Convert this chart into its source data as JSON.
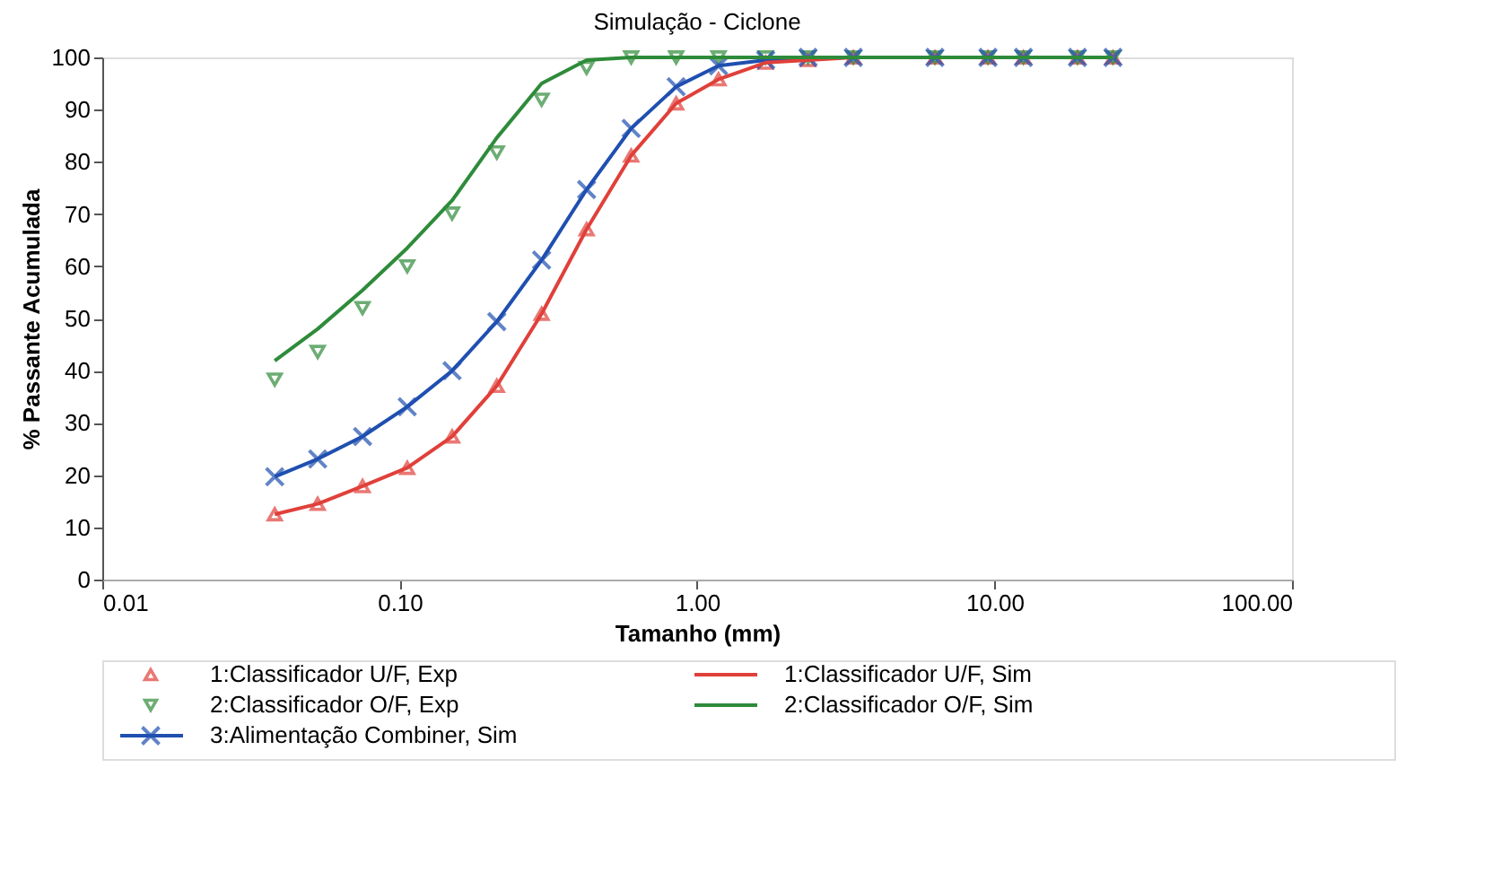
{
  "chart_data": {
    "type": "line",
    "title": "Simulação - Ciclone",
    "xlabel": "Tamanho (mm)",
    "ylabel": "% Passante Acumulada",
    "log": "x",
    "grid": false,
    "legend": "bottom",
    "xlim": [
      0.01,
      100
    ],
    "ylim": [
      0,
      100
    ],
    "xticks": [
      0.01,
      {
        "value": 0.1,
        "label": "0.10"
      },
      {
        "value": 1,
        "label": "1.00"
      },
      {
        "value": 10,
        "label": "10.00"
      },
      {
        "value": 100,
        "label": "100.00"
      }
    ],
    "yticks": [
      0,
      10,
      20,
      30,
      40,
      50,
      60,
      70,
      80,
      90,
      100
    ],
    "x": [
      0.038,
      0.053,
      0.075,
      0.106,
      0.15,
      0.212,
      0.3,
      0.425,
      0.6,
      0.85,
      1.18,
      1.7,
      2.36,
      3.35,
      6.3,
      9.5,
      12.5,
      19,
      25
    ],
    "series": [
      {
        "name": "1:Classificador U/F, Exp",
        "type": "scatter",
        "marker": "triangle",
        "color": "#e0403a",
        "values": [
          12.5,
          14.5,
          17.9,
          21.4,
          27.4,
          37.1,
          50.9,
          67.1,
          81.2,
          91.2,
          95.8,
          99,
          99.5,
          100,
          100,
          100,
          100,
          100,
          100
        ]
      },
      {
        "name": "2:Classificador O/F, Exp",
        "type": "scatter",
        "marker": "triangle-down",
        "color": "#2e8b3a",
        "values": [
          38.3,
          43.6,
          52,
          60,
          70.1,
          81.8,
          91.9,
          98,
          100,
          100,
          100,
          100,
          100,
          100,
          100,
          100,
          100,
          100,
          100
        ]
      },
      {
        "name": "3:Alimentação Combiner, Sim",
        "marker": "cross",
        "color": "#1f4fb0",
        "values": [
          19.7,
          23.1,
          27.4,
          33.1,
          40,
          49.4,
          61.2,
          74.7,
          86.4,
          94.4,
          98.4,
          99.5,
          100,
          100,
          100,
          100,
          100,
          100,
          100
        ]
      },
      {
        "name": "1:Classificador U/F, Sim",
        "marker": "none",
        "color": "#e0403a",
        "values": [
          12.5,
          14.5,
          17.9,
          21.4,
          27.4,
          37.1,
          50.9,
          67.1,
          81.2,
          91.2,
          95.8,
          99,
          99.5,
          100,
          100,
          100,
          100,
          100,
          100
        ]
      },
      {
        "name": "2:Classificador O/F, Sim",
        "marker": "none",
        "color": "#2e8b3a",
        "values": [
          41.9,
          48,
          55.4,
          63.5,
          72.6,
          84.6,
          95,
          99.5,
          100,
          100,
          100,
          100,
          100,
          100,
          100,
          100,
          100,
          100,
          100
        ]
      }
    ]
  }
}
